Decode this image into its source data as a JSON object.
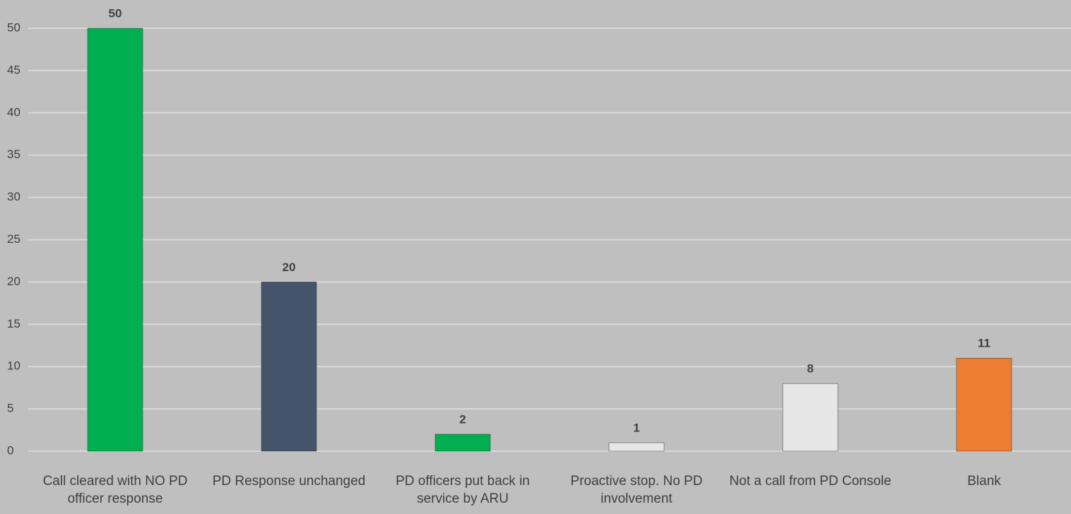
{
  "chart_data": {
    "type": "bar",
    "categories": [
      "Call cleared with NO PD officer response",
      "PD Response unchanged",
      "PD officers put back in service by ARU",
      "Proactive stop. No PD involvement",
      "Not a call from PD Console",
      "Blank"
    ],
    "values": [
      50,
      20,
      2,
      1,
      8,
      11
    ],
    "colors": [
      "#00b050",
      "#44546a",
      "#00b050",
      "#e7e6e6",
      "#e7e6e6",
      "#ed7d31"
    ],
    "ylim": [
      0,
      50
    ],
    "yticks": [
      0,
      5,
      10,
      15,
      20,
      25,
      30,
      35,
      40,
      45,
      50
    ],
    "grid": true
  }
}
